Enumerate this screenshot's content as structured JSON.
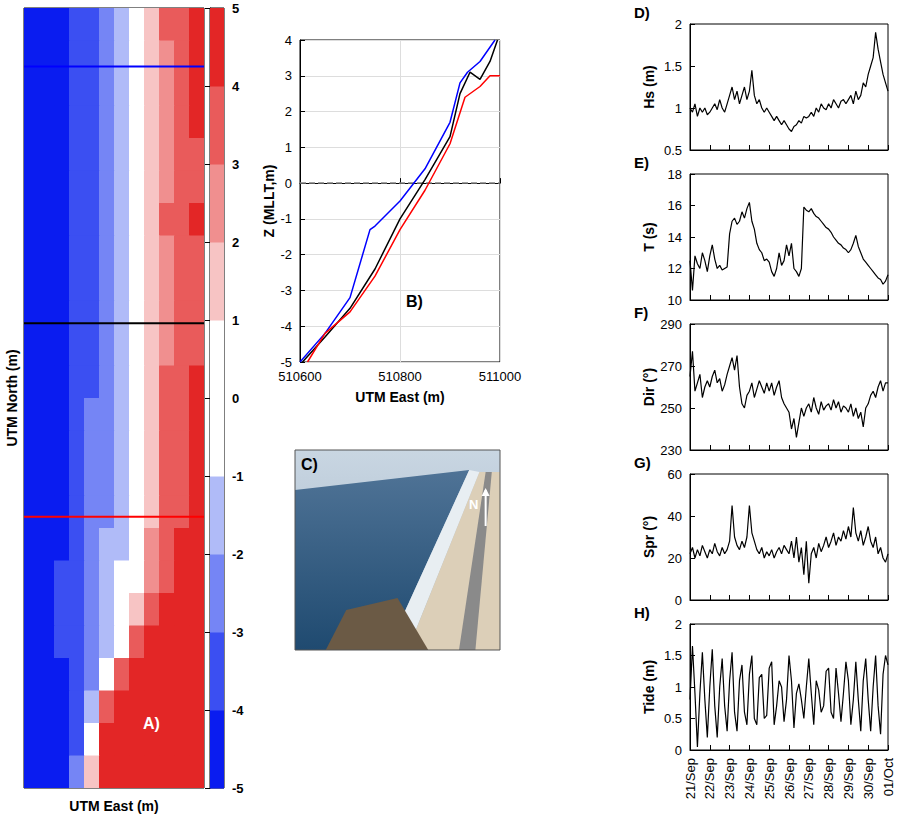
{
  "chart_data": [
    {
      "type": "heatmap",
      "xlabel": "UTM East (m)",
      "ylabel": "UTM North (m)",
      "tick_labels": false,
      "annotations": [
        {
          "text": "A)",
          "x": 8.5,
          "y": 2
        }
      ],
      "transects": [
        {
          "color": "#0000ff",
          "y": 22.2
        },
        {
          "color": "#000000",
          "y": 14.3
        },
        {
          "color": "#ff0000",
          "y": 8.35
        }
      ],
      "colorbar": {
        "range": [
          -5,
          5
        ],
        "ticks": [
          -5,
          -4,
          -3,
          -2,
          -1,
          0,
          1,
          2,
          3,
          4,
          5
        ],
        "colors": [
          "#0a1cf0",
          "#3b4ff2",
          "#7585f5",
          "#b0bbf8",
          "#ffffff",
          "#ffffff",
          "#f7c4c4",
          "#f08f8f",
          "#e95b5b",
          "#e32626"
        ]
      },
      "cells": [
        [
          -5,
          -5,
          -4.5,
          -3.8,
          -3.1,
          -2.4,
          -1.5,
          -0.5,
          1.5,
          3.0,
          3.8,
          4.5
        ],
        [
          -5,
          -5,
          -4.6,
          -3.9,
          -3.2,
          -2.5,
          -1.6,
          -0.6,
          1.4,
          2.9,
          3.6,
          4.4
        ],
        [
          -5,
          -4.9,
          -4.5,
          -3.9,
          -3.2,
          -2.5,
          -1.6,
          -0.7,
          1.3,
          2.9,
          3.5,
          4.2
        ],
        [
          -5,
          -5,
          -4.6,
          -4.0,
          -3.3,
          -2.6,
          -1.7,
          -0.7,
          1.2,
          2.8,
          3.4,
          4.0
        ],
        [
          -5,
          -5,
          -4.7,
          -4.0,
          -3.3,
          -2.6,
          -1.7,
          -0.8,
          1.2,
          2.8,
          3.3,
          3.8
        ],
        [
          -5,
          -5,
          -4.6,
          -3.9,
          -3.2,
          -2.5,
          -1.6,
          -0.6,
          1.3,
          2.9,
          3.4,
          3.9
        ],
        [
          -5,
          -5,
          -4.5,
          -3.8,
          -3.1,
          -2.4,
          -1.5,
          -0.5,
          1.4,
          3.0,
          3.5,
          4.1
        ],
        [
          -5,
          -5,
          -4.6,
          -3.9,
          -3.2,
          -2.5,
          -1.6,
          -0.6,
          1.3,
          2.9,
          3.3,
          3.8
        ],
        [
          -5,
          -5,
          -4.7,
          -4.0,
          -3.3,
          -2.6,
          -1.7,
          -0.7,
          1.2,
          2.8,
          3.2,
          3.7
        ],
        [
          -5,
          -5,
          -4.7,
          -4.0,
          -3.3,
          -2.6,
          -1.8,
          -0.8,
          1.1,
          2.8,
          3.2,
          3.6
        ],
        [
          -5,
          -5,
          -4.6,
          -3.9,
          -3.2,
          -2.5,
          -1.7,
          -0.7,
          1.2,
          2.9,
          3.3,
          3.9
        ],
        [
          -5,
          -4.9,
          -4.5,
          -3.8,
          -3.1,
          -2.4,
          -1.6,
          -0.6,
          1.3,
          3.0,
          3.4,
          4.1
        ],
        [
          -5,
          -4.9,
          -4.4,
          -3.7,
          -3.0,
          -2.3,
          -1.5,
          -0.5,
          1.4,
          3.0,
          3.5,
          4.2
        ],
        [
          -5,
          -4.8,
          -4.3,
          -3.6,
          -2.9,
          -2.2,
          -1.4,
          -0.4,
          1.5,
          3.1,
          3.6,
          4.3
        ],
        [
          -5,
          -4.8,
          -4.3,
          -3.6,
          -2.9,
          -2.2,
          -1.4,
          -0.4,
          1.6,
          3.1,
          3.7,
          4.4
        ],
        [
          -5,
          -4.7,
          -4.2,
          -3.5,
          -2.8,
          -2.1,
          -1.3,
          -0.3,
          1.8,
          3.2,
          3.8,
          4.5
        ],
        [
          -5,
          -4.6,
          -4.1,
          -3.4,
          -2.7,
          -2.0,
          -1.2,
          -0.2,
          2.0,
          3.4,
          4.0,
          4.6
        ],
        [
          -5,
          -4.5,
          -4.0,
          -3.3,
          -2.6,
          -1.8,
          -0.9,
          0.5,
          2.6,
          3.8,
          4.4,
          4.8
        ],
        [
          -5,
          -4.5,
          -3.9,
          -3.2,
          -2.5,
          -1.6,
          -0.6,
          1.5,
          3.5,
          4.5,
          5,
          5
        ],
        [
          -5,
          -4.6,
          -4.0,
          -3.3,
          -2.6,
          -1.5,
          0.5,
          3,
          5,
          5,
          5,
          5
        ],
        [
          -5,
          -4.6,
          -4.1,
          -3.4,
          -2.5,
          -0.5,
          3,
          5,
          5,
          5,
          5,
          5
        ],
        [
          -5,
          -4.7,
          -4.2,
          -3.3,
          -1.5,
          3.5,
          5,
          5,
          5,
          5,
          5,
          5
        ],
        [
          -5,
          -4.8,
          -4.3,
          -3.2,
          -0.5,
          4.5,
          5,
          5,
          5,
          5,
          5,
          5
        ],
        [
          -5,
          -4.8,
          -4.2,
          -3.0,
          1.0,
          5,
          5,
          5,
          5,
          5,
          5,
          5
        ]
      ]
    },
    {
      "type": "line",
      "xlabel": "UTM East (m)",
      "ylabel": "Z (MLLT,m)",
      "xlim": [
        510600,
        511000
      ],
      "xticks": [
        510600,
        510800,
        511000
      ],
      "ylim": [
        -5,
        4
      ],
      "yticks": [
        -5,
        -4,
        -3,
        -2,
        -1,
        0,
        1,
        2,
        3,
        4
      ],
      "grid": true,
      "annotations": [
        {
          "text": "B)",
          "x": 510810,
          "y": -3.3
        }
      ],
      "series": [
        {
          "color": "#808080",
          "line_style": "dashed",
          "x": [
            510600,
            511000
          ],
          "values": [
            0,
            0
          ]
        },
        {
          "color": "#0000ff",
          "x": [
            510600,
            510650,
            510700,
            510740,
            510750,
            510800,
            510850,
            510900,
            510920,
            510935,
            510960,
            510990
          ],
          "values": [
            -5,
            -4.2,
            -3.2,
            -1.3,
            -1.2,
            -0.5,
            0.4,
            1.7,
            2.8,
            3.1,
            3.4,
            4
          ]
        },
        {
          "color": "#000000",
          "x": [
            510605,
            510650,
            510700,
            510750,
            510800,
            510850,
            510900,
            510920,
            510940,
            510960,
            510980,
            510995
          ],
          "values": [
            -5,
            -4.3,
            -3.5,
            -2.4,
            -1.0,
            0.1,
            1.3,
            2.5,
            3.1,
            2.9,
            3.4,
            4.0
          ]
        },
        {
          "color": "#ff0000",
          "x": [
            510615,
            510650,
            510700,
            510750,
            510800,
            510850,
            510900,
            510930,
            510960,
            510980,
            511000
          ],
          "values": [
            -5,
            -4.2,
            -3.6,
            -2.6,
            -1.3,
            -0.2,
            1.1,
            2.4,
            2.7,
            3.0,
            3.0
          ]
        }
      ]
    },
    {
      "type": "photo",
      "panel": "C)",
      "north_label": "N"
    },
    {
      "type": "line",
      "color": "#000000",
      "categories": [
        "21/Sep",
        null,
        null,
        null,
        null,
        null,
        null,
        null,
        "22/Sep",
        null,
        null,
        null,
        null,
        null,
        null,
        null,
        "23/Sep",
        null,
        null,
        null,
        null,
        null,
        null,
        null,
        "24/Sep",
        null,
        null,
        null,
        null,
        null,
        null,
        null,
        "25/Sep",
        null,
        null,
        null,
        null,
        null,
        null,
        null,
        "26/Sep",
        null,
        null,
        null,
        null,
        null,
        null,
        null,
        "27/Sep",
        null,
        null,
        null,
        null,
        null,
        null,
        null,
        "28/Sep",
        null,
        null,
        null,
        null,
        null,
        null,
        null,
        "29/Sep",
        null,
        null,
        null,
        null,
        null,
        null,
        null,
        "30/Sep",
        null,
        null,
        null,
        null,
        null,
        null,
        null,
        "01/Oct"
      ],
      "panels": [
        {
          "panel": "D)",
          "ylabel": "Hs (m)",
          "ylim": [
            0.5,
            2
          ],
          "yticks": [
            0.5,
            1,
            1.5,
            2
          ],
          "values": [
            1.0,
            0.95,
            1.05,
            0.9,
            1.0,
            0.95,
            1.0,
            0.92,
            0.95,
            1.0,
            1.05,
            0.98,
            1.1,
            1.0,
            0.95,
            1.05,
            1.15,
            1.25,
            1.1,
            1.2,
            1.05,
            1.15,
            1.25,
            1.1,
            1.2,
            1.45,
            1.15,
            1.05,
            1.1,
            1.0,
            0.95,
            1.0,
            0.95,
            0.9,
            0.85,
            0.9,
            0.85,
            0.8,
            0.85,
            0.8,
            0.75,
            0.72,
            0.78,
            0.8,
            0.85,
            0.82,
            0.9,
            0.88,
            0.9,
            0.95,
            0.9,
            1.0,
            0.95,
            1.05,
            1.0,
            0.98,
            1.05,
            1.0,
            1.1,
            1.05,
            1.0,
            1.08,
            1.1,
            1.05,
            1.1,
            1.15,
            1.05,
            1.2,
            1.1,
            1.15,
            1.3,
            1.25,
            1.4,
            1.5,
            1.6,
            1.9,
            1.7,
            1.55,
            1.4,
            1.3,
            1.2
          ]
        },
        {
          "panel": "E)",
          "ylabel": "T (s)",
          "ylim": [
            10,
            18
          ],
          "yticks": [
            10,
            12,
            14,
            16,
            18
          ],
          "values": [
            12.5,
            10.6,
            12.8,
            12.3,
            12.0,
            13.0,
            12.5,
            11.8,
            12.8,
            13.5,
            12.6,
            12.0,
            12.2,
            11.9,
            12.0,
            12.1,
            14.2,
            15.0,
            15.2,
            14.8,
            15.0,
            15.6,
            15.2,
            15.8,
            16.2,
            15.0,
            14.5,
            13.6,
            13.2,
            13.0,
            12.5,
            12.6,
            12.4,
            11.8,
            11.5,
            12.0,
            13.0,
            12.2,
            12.5,
            13.5,
            12.8,
            13.6,
            12.0,
            11.8,
            11.5,
            12.0,
            15.9,
            15.7,
            15.6,
            15.8,
            15.5,
            15.3,
            15.2,
            15.0,
            14.8,
            14.6,
            14.5,
            14.3,
            14.0,
            13.8,
            13.6,
            13.5,
            13.3,
            13.2,
            13.0,
            13.2,
            13.6,
            14.1,
            13.4,
            13.0,
            12.6,
            12.4,
            12.2,
            12.0,
            11.8,
            11.6,
            11.4,
            11.3,
            11.0,
            11.2,
            11.6
          ]
        },
        {
          "panel": "F)",
          "ylabel": "Dir (°)",
          "ylim": [
            230,
            290
          ],
          "yticks": [
            230,
            250,
            270,
            290
          ],
          "values": [
            265,
            277,
            258,
            262,
            266,
            255,
            260,
            263,
            260,
            265,
            268,
            262,
            264,
            258,
            261,
            266,
            270,
            274,
            268,
            275,
            260,
            252,
            250,
            256,
            258,
            262,
            255,
            259,
            263,
            260,
            257,
            262,
            258,
            262,
            256,
            260,
            263,
            255,
            252,
            250,
            248,
            240,
            245,
            236,
            243,
            250,
            246,
            250,
            252,
            248,
            255,
            250,
            247,
            253,
            249,
            251,
            252,
            249,
            254,
            250,
            253,
            248,
            251,
            250,
            248,
            252,
            246,
            250,
            245,
            248,
            241,
            250,
            252,
            256,
            258,
            255,
            260,
            263,
            258,
            262,
            262
          ]
        },
        {
          "panel": "G)",
          "ylabel": "Spr (°)",
          "ylim": [
            0,
            60
          ],
          "yticks": [
            0,
            20,
            40,
            60
          ],
          "values": [
            22,
            25,
            20,
            24,
            21,
            26,
            23,
            20,
            24,
            22,
            27,
            23,
            21,
            25,
            22,
            24,
            28,
            45,
            30,
            26,
            24,
            28,
            25,
            30,
            45,
            32,
            28,
            24,
            22,
            25,
            20,
            23,
            21,
            24,
            20,
            23,
            25,
            22,
            26,
            24,
            22,
            28,
            20,
            30,
            18,
            25,
            12,
            28,
            8,
            22,
            25,
            20,
            27,
            23,
            26,
            30,
            25,
            28,
            32,
            26,
            30,
            28,
            33,
            29,
            35,
            30,
            44,
            32,
            28,
            33,
            26,
            30,
            35,
            28,
            25,
            30,
            22,
            25,
            20,
            18,
            22
          ]
        },
        {
          "panel": "H)",
          "ylabel": "Tide (m)",
          "ylim": [
            0,
            2
          ],
          "yticks": [
            0,
            0.5,
            1,
            1.5,
            2
          ],
          "values": [
            0.8,
            1.65,
            0.9,
            0.05,
            0.9,
            1.55,
            0.8,
            0.2,
            1.0,
            1.6,
            0.7,
            0.2,
            1.0,
            1.45,
            0.7,
            0.3,
            1.1,
            1.55,
            0.6,
            0.3,
            1.1,
            1.35,
            0.6,
            0.4,
            1.2,
            1.5,
            0.5,
            0.4,
            1.15,
            1.2,
            0.5,
            0.55,
            1.3,
            1.4,
            0.4,
            0.7,
            1.1,
            1.0,
            0.45,
            0.8,
            1.5,
            1.1,
            0.35,
            0.9,
            1.05,
            0.8,
            0.5,
            1.0,
            1.45,
            0.9,
            0.4,
            1.1,
            0.95,
            0.6,
            0.7,
            1.25,
            1.3,
            0.6,
            0.5,
            1.3,
            0.9,
            0.45,
            0.9,
            1.4,
            1.1,
            0.4,
            0.8,
            1.4,
            0.8,
            0.3,
            1.1,
            1.45,
            0.8,
            0.3,
            1.0,
            1.5,
            0.7,
            0.25,
            1.2,
            1.5,
            1.35
          ]
        }
      ]
    }
  ]
}
